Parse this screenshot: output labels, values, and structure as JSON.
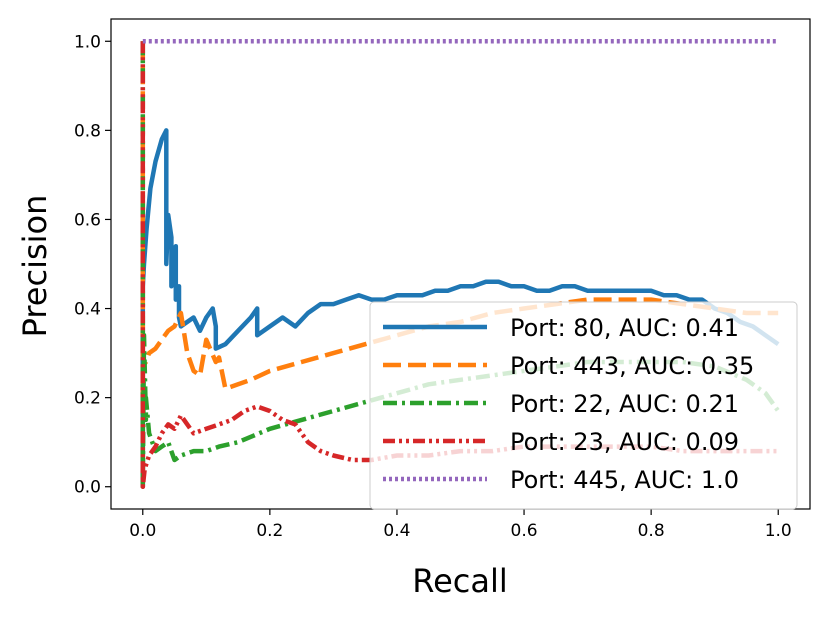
{
  "chart_data": {
    "type": "line",
    "xlabel": "Recall",
    "ylabel": "Precision",
    "xlim": [
      -0.05,
      1.05
    ],
    "ylim": [
      -0.05,
      1.05
    ],
    "xticks": [
      "0.0",
      "0.2",
      "0.4",
      "0.6",
      "0.8",
      "1.0"
    ],
    "yticks": [
      "0.0",
      "0.2",
      "0.4",
      "0.6",
      "0.8",
      "1.0"
    ],
    "grid": false,
    "legend_position": "lower-right",
    "series": [
      {
        "name": "Port: 80, AUC: 0.41",
        "color": "#1f77b4",
        "style": "solid",
        "x": [
          0.0,
          0.0,
          0.0,
          0.002,
          0.006,
          0.012,
          0.02,
          0.03,
          0.037,
          0.037,
          0.04,
          0.045,
          0.045,
          0.052,
          0.052,
          0.057,
          0.057,
          0.06,
          0.07,
          0.08,
          0.09,
          0.1,
          0.11,
          0.115,
          0.115,
          0.13,
          0.15,
          0.17,
          0.18,
          0.18,
          0.2,
          0.22,
          0.24,
          0.26,
          0.28,
          0.3,
          0.32,
          0.34,
          0.36,
          0.38,
          0.4,
          0.42,
          0.44,
          0.46,
          0.48,
          0.5,
          0.52,
          0.54,
          0.56,
          0.58,
          0.6,
          0.62,
          0.64,
          0.66,
          0.68,
          0.7,
          0.72,
          0.74,
          0.76,
          0.78,
          0.8,
          0.82,
          0.84,
          0.86,
          0.88,
          0.9,
          0.92,
          0.94,
          0.96,
          0.98,
          1.0
        ],
        "y": [
          0.0,
          0.33,
          0.45,
          0.5,
          0.58,
          0.67,
          0.73,
          0.78,
          0.8,
          0.5,
          0.61,
          0.56,
          0.45,
          0.54,
          0.42,
          0.45,
          0.38,
          0.36,
          0.37,
          0.38,
          0.35,
          0.38,
          0.4,
          0.36,
          0.31,
          0.32,
          0.35,
          0.38,
          0.4,
          0.34,
          0.36,
          0.38,
          0.36,
          0.39,
          0.41,
          0.41,
          0.42,
          0.43,
          0.42,
          0.42,
          0.43,
          0.43,
          0.43,
          0.44,
          0.44,
          0.45,
          0.45,
          0.46,
          0.46,
          0.45,
          0.45,
          0.44,
          0.44,
          0.45,
          0.45,
          0.44,
          0.44,
          0.44,
          0.44,
          0.44,
          0.44,
          0.43,
          0.43,
          0.42,
          0.42,
          0.4,
          0.39,
          0.37,
          0.36,
          0.34,
          0.32
        ]
      },
      {
        "name": "Port: 443, AUC: 0.35",
        "color": "#ff7f0e",
        "style": "dashed",
        "x": [
          0.0,
          0.0,
          0.0,
          0.005,
          0.01,
          0.02,
          0.03,
          0.04,
          0.05,
          0.06,
          0.07,
          0.08,
          0.09,
          0.1,
          0.115,
          0.12,
          0.13,
          0.15,
          0.17,
          0.2,
          0.25,
          0.3,
          0.35,
          0.4,
          0.45,
          0.5,
          0.55,
          0.6,
          0.65,
          0.7,
          0.75,
          0.8,
          0.85,
          0.9,
          0.95,
          1.0
        ],
        "y": [
          1.0,
          0.2,
          0.27,
          0.28,
          0.3,
          0.31,
          0.33,
          0.35,
          0.36,
          0.39,
          0.3,
          0.26,
          0.25,
          0.33,
          0.28,
          0.29,
          0.22,
          0.23,
          0.24,
          0.26,
          0.28,
          0.3,
          0.32,
          0.34,
          0.36,
          0.37,
          0.39,
          0.4,
          0.41,
          0.42,
          0.42,
          0.42,
          0.41,
          0.4,
          0.39,
          0.39
        ]
      },
      {
        "name": "Port: 22, AUC: 0.21",
        "color": "#2ca02c",
        "style": "dashdot",
        "x": [
          0.0,
          0.0,
          0.002,
          0.005,
          0.005,
          0.01,
          0.015,
          0.02,
          0.03,
          0.04,
          0.05,
          0.06,
          0.08,
          0.1,
          0.12,
          0.15,
          0.2,
          0.25,
          0.3,
          0.35,
          0.4,
          0.45,
          0.5,
          0.55,
          0.6,
          0.65,
          0.7,
          0.75,
          0.8,
          0.85,
          0.9,
          0.95,
          0.98,
          1.0
        ],
        "y": [
          1.0,
          0.0,
          0.34,
          0.15,
          0.2,
          0.12,
          0.1,
          0.08,
          0.09,
          0.1,
          0.06,
          0.07,
          0.08,
          0.08,
          0.09,
          0.1,
          0.13,
          0.15,
          0.17,
          0.19,
          0.21,
          0.23,
          0.24,
          0.25,
          0.26,
          0.27,
          0.28,
          0.28,
          0.28,
          0.28,
          0.27,
          0.24,
          0.21,
          0.17
        ]
      },
      {
        "name": "Port: 23, AUC: 0.09",
        "color": "#d62728",
        "style": "dashdotdot",
        "x": [
          0.0,
          0.0,
          0.003,
          0.01,
          0.02,
          0.03,
          0.04,
          0.05,
          0.06,
          0.08,
          0.1,
          0.12,
          0.14,
          0.16,
          0.18,
          0.2,
          0.22,
          0.24,
          0.25,
          0.26,
          0.28,
          0.3,
          0.33,
          0.36,
          0.4,
          0.45,
          0.5,
          0.55,
          0.6,
          0.65,
          0.7,
          0.75,
          0.8,
          0.85,
          0.9,
          0.95,
          1.0
        ],
        "y": [
          1.0,
          0.0,
          0.04,
          0.07,
          0.09,
          0.12,
          0.14,
          0.13,
          0.16,
          0.12,
          0.13,
          0.14,
          0.15,
          0.17,
          0.18,
          0.17,
          0.15,
          0.14,
          0.12,
          0.1,
          0.08,
          0.07,
          0.06,
          0.06,
          0.07,
          0.07,
          0.08,
          0.08,
          0.09,
          0.09,
          0.09,
          0.09,
          0.09,
          0.08,
          0.08,
          0.08,
          0.08
        ]
      },
      {
        "name": "Port: 445, AUC: 1.0",
        "color": "#9467bd",
        "style": "dotted",
        "x": [
          0.0,
          1.0
        ],
        "y": [
          1.0,
          1.0
        ]
      }
    ]
  }
}
